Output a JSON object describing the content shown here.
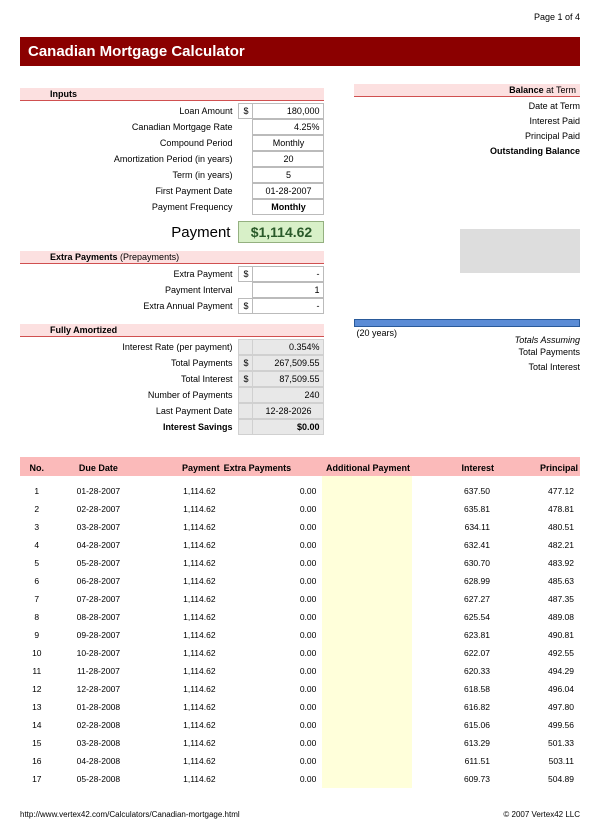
{
  "page_number": "Page 1 of 4",
  "title": "Canadian Mortgage Calculator",
  "colors": {
    "title_bg": "#8b0000",
    "section_bg": "#fce0e0",
    "section_border": "#d05050",
    "table_head_bg": "#fbbaba",
    "highlight_col_bg": "#ffffda",
    "payment_bg": "#d8f0c8",
    "payment_fg": "#2a5a2a",
    "grey_bg": "#e8e8e8",
    "blue_bar": "#5b8cd6"
  },
  "inputs": {
    "heading": "Inputs",
    "loan_amount_label": "Loan Amount",
    "loan_amount": "180,000",
    "rate_label": "Canadian Mortgage Rate",
    "rate": "4.25%",
    "compound_label": "Compound Period",
    "compound": "Monthly",
    "amort_label": "Amortization Period (in years)",
    "amort": "20",
    "term_label": "Term (in years)",
    "term": "5",
    "first_date_label": "First Payment Date",
    "first_date": "01-28-2007",
    "freq_label": "Payment Frequency",
    "freq": "Monthly"
  },
  "payment_label": "Payment",
  "payment_value": "$1,114.62",
  "extra": {
    "heading_b": "Extra Payments",
    "heading_n": " (Prepayments)",
    "extra_label": "Extra Payment",
    "extra_val": "-",
    "interval_label": "Payment Interval",
    "interval_val": "1",
    "annual_label": "Extra Annual Payment",
    "annual_val": "-"
  },
  "amortized": {
    "heading": "Fully Amortized",
    "rate_label": "Interest Rate (per payment)",
    "rate_val": "0.354%",
    "tot_pay_label": "Total Payments",
    "tot_pay_val": "267,509.55",
    "tot_int_label": "Total Interest",
    "tot_int_val": "87,509.55",
    "num_label": "Number of Payments",
    "num_val": "240",
    "num_note": "(20 years)",
    "last_label": "Last Payment Date",
    "last_val": "12-28-2026",
    "savings_label": "Interest Savings",
    "savings_val": "$0.00"
  },
  "balance": {
    "heading_b": "Balance",
    "heading_n": " at Term",
    "date_label": "Date at Term",
    "int_label": "Interest Paid",
    "prin_label": "Principal Paid",
    "out_label": "Outstanding Balance"
  },
  "totals_right": {
    "assuming": "Totals Assuming",
    "tot_pay": "Total Payments",
    "tot_int": "Total Interest"
  },
  "schedule": {
    "headers": {
      "no": "No.",
      "due": "Due Date",
      "payment": "Payment",
      "extra": "Extra Payments",
      "additional": "Additional Payment",
      "interest": "Interest",
      "principal": "Principal"
    },
    "rows": [
      {
        "n": "1",
        "d": "01-28-2007",
        "p": "1,114.62",
        "e": "0.00",
        "a": "",
        "i": "637.50",
        "pr": "477.12"
      },
      {
        "n": "2",
        "d": "02-28-2007",
        "p": "1,114.62",
        "e": "0.00",
        "a": "",
        "i": "635.81",
        "pr": "478.81"
      },
      {
        "n": "3",
        "d": "03-28-2007",
        "p": "1,114.62",
        "e": "0.00",
        "a": "",
        "i": "634.11",
        "pr": "480.51"
      },
      {
        "n": "4",
        "d": "04-28-2007",
        "p": "1,114.62",
        "e": "0.00",
        "a": "",
        "i": "632.41",
        "pr": "482.21"
      },
      {
        "n": "5",
        "d": "05-28-2007",
        "p": "1,114.62",
        "e": "0.00",
        "a": "",
        "i": "630.70",
        "pr": "483.92"
      },
      {
        "n": "6",
        "d": "06-28-2007",
        "p": "1,114.62",
        "e": "0.00",
        "a": "",
        "i": "628.99",
        "pr": "485.63"
      },
      {
        "n": "7",
        "d": "07-28-2007",
        "p": "1,114.62",
        "e": "0.00",
        "a": "",
        "i": "627.27",
        "pr": "487.35"
      },
      {
        "n": "8",
        "d": "08-28-2007",
        "p": "1,114.62",
        "e": "0.00",
        "a": "",
        "i": "625.54",
        "pr": "489.08"
      },
      {
        "n": "9",
        "d": "09-28-2007",
        "p": "1,114.62",
        "e": "0.00",
        "a": "",
        "i": "623.81",
        "pr": "490.81"
      },
      {
        "n": "10",
        "d": "10-28-2007",
        "p": "1,114.62",
        "e": "0.00",
        "a": "",
        "i": "622.07",
        "pr": "492.55"
      },
      {
        "n": "11",
        "d": "11-28-2007",
        "p": "1,114.62",
        "e": "0.00",
        "a": "",
        "i": "620.33",
        "pr": "494.29"
      },
      {
        "n": "12",
        "d": "12-28-2007",
        "p": "1,114.62",
        "e": "0.00",
        "a": "",
        "i": "618.58",
        "pr": "496.04"
      },
      {
        "n": "13",
        "d": "01-28-2008",
        "p": "1,114.62",
        "e": "0.00",
        "a": "",
        "i": "616.82",
        "pr": "497.80"
      },
      {
        "n": "14",
        "d": "02-28-2008",
        "p": "1,114.62",
        "e": "0.00",
        "a": "",
        "i": "615.06",
        "pr": "499.56"
      },
      {
        "n": "15",
        "d": "03-28-2008",
        "p": "1,114.62",
        "e": "0.00",
        "a": "",
        "i": "613.29",
        "pr": "501.33"
      },
      {
        "n": "16",
        "d": "04-28-2008",
        "p": "1,114.62",
        "e": "0.00",
        "a": "",
        "i": "611.51",
        "pr": "503.11"
      },
      {
        "n": "17",
        "d": "05-28-2008",
        "p": "1,114.62",
        "e": "0.00",
        "a": "",
        "i": "609.73",
        "pr": "504.89"
      }
    ]
  },
  "footer": {
    "url": "http://www.vertex42.com/Calculators/Canadian-mortgage.html",
    "copyright": "© 2007 Vertex42 LLC"
  }
}
